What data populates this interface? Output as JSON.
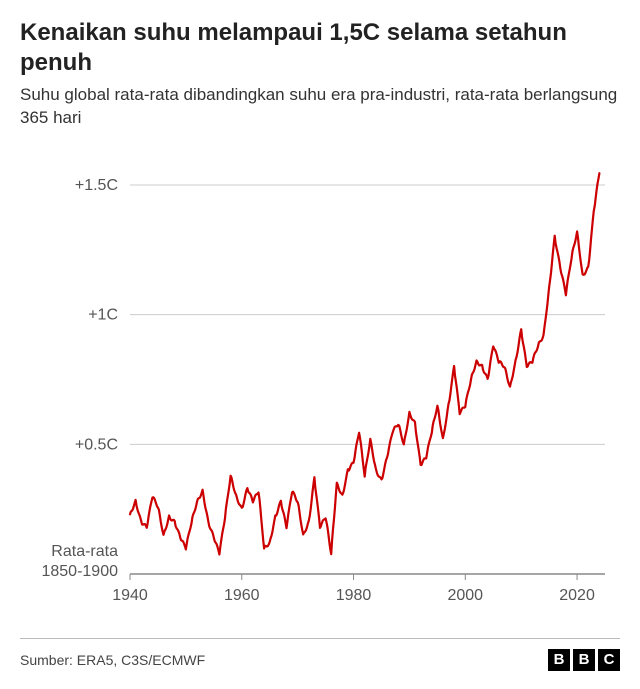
{
  "title": "Kenaikan suhu melampaui 1,5C selama setahun penuh",
  "subtitle": "Suhu global rata-rata dibandingkan suhu era pra-industri, rata-rata berlangsung 365 hari",
  "source_label": "Sumber: ERA5, C3S/ECMWF",
  "logo_letters": [
    "B",
    "B",
    "C"
  ],
  "chart": {
    "type": "line",
    "line_color": "#cc0000",
    "line_width": 2.2,
    "background_color": "#ffffff",
    "axis_color": "#888888",
    "grid_color": "#cccccc",
    "tick_label_color": "#555555",
    "tick_label_fontsize": 16,
    "xlim": [
      1940,
      2025
    ],
    "ylim": [
      0,
      1.6
    ],
    "x_ticks": [
      1940,
      1960,
      1980,
      2000,
      2020
    ],
    "y_axis": {
      "ticks": [
        {
          "value": 0.5,
          "label": "+0.5C"
        },
        {
          "value": 1.0,
          "label": "+1C"
        },
        {
          "value": 1.5,
          "label": "+1.5C"
        }
      ],
      "baseline_value": 0,
      "baseline_label_line1": "Rata-rata",
      "baseline_label_line2": "1850-1900"
    },
    "series": {
      "x": [
        1940,
        1941,
        1942,
        1943,
        1944,
        1945,
        1946,
        1947,
        1948,
        1949,
        1950,
        1951,
        1952,
        1953,
        1954,
        1955,
        1956,
        1957,
        1958,
        1959,
        1960,
        1961,
        1962,
        1963,
        1964,
        1965,
        1966,
        1967,
        1968,
        1969,
        1970,
        1971,
        1972,
        1973,
        1974,
        1975,
        1976,
        1977,
        1978,
        1979,
        1980,
        1981,
        1982,
        1983,
        1984,
        1985,
        1986,
        1987,
        1988,
        1989,
        1990,
        1991,
        1992,
        1993,
        1994,
        1995,
        1996,
        1997,
        1998,
        1999,
        2000,
        2001,
        2002,
        2003,
        2004,
        2005,
        2006,
        2007,
        2008,
        2009,
        2010,
        2011,
        2012,
        2013,
        2014,
        2015,
        2016,
        2017,
        2018,
        2019,
        2020,
        2021,
        2022,
        2023,
        2024
      ],
      "y": [
        0.23,
        0.28,
        0.2,
        0.18,
        0.3,
        0.26,
        0.15,
        0.22,
        0.2,
        0.14,
        0.1,
        0.2,
        0.28,
        0.32,
        0.2,
        0.14,
        0.08,
        0.22,
        0.38,
        0.3,
        0.25,
        0.33,
        0.28,
        0.32,
        0.1,
        0.12,
        0.22,
        0.28,
        0.18,
        0.32,
        0.28,
        0.15,
        0.2,
        0.37,
        0.18,
        0.22,
        0.08,
        0.35,
        0.3,
        0.4,
        0.43,
        0.55,
        0.38,
        0.52,
        0.4,
        0.36,
        0.45,
        0.55,
        0.58,
        0.5,
        0.62,
        0.58,
        0.42,
        0.45,
        0.55,
        0.65,
        0.52,
        0.65,
        0.8,
        0.62,
        0.65,
        0.75,
        0.82,
        0.8,
        0.75,
        0.88,
        0.82,
        0.8,
        0.72,
        0.82,
        0.94,
        0.8,
        0.82,
        0.88,
        0.92,
        1.1,
        1.3,
        1.18,
        1.08,
        1.22,
        1.32,
        1.15,
        1.18,
        1.4,
        1.55
      ]
    }
  }
}
